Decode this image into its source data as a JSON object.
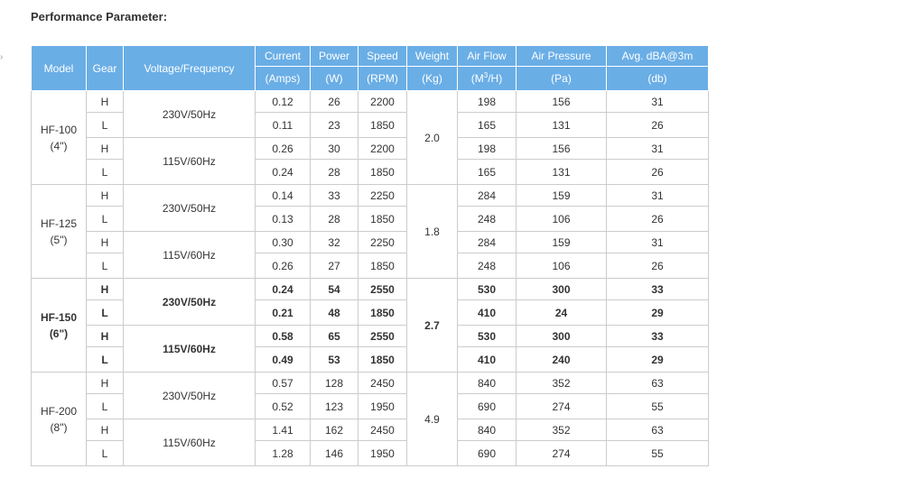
{
  "title": "Performance Parameter:",
  "header": {
    "model": "Model",
    "gear": "Gear",
    "voltage": "Voltage/Frequency",
    "current": "Current",
    "current_unit": "(Amps)",
    "power": "Power",
    "power_unit": "(W)",
    "speed": "Speed",
    "speed_unit": "(RPM)",
    "weight": "Weight",
    "weight_unit": "(Kg)",
    "airflow": "Air Flow",
    "airflow_unit_pre": "(M",
    "airflow_unit_sup": "3",
    "airflow_unit_post": "/H)",
    "pressure": "Air Pressure",
    "pressure_unit": "(Pa)",
    "noise": "Avg. dBA@3m",
    "noise_unit": "(db)"
  },
  "models": [
    {
      "name": "HF-100",
      "size": "(4\")",
      "weight": "2.0",
      "bold": false,
      "groups": [
        {
          "voltage": "230V/50Hz",
          "rows": [
            {
              "gear": "H",
              "current": "0.12",
              "power": "26",
              "speed": "2200",
              "airflow": "198",
              "pressure": "156",
              "noise": "31"
            },
            {
              "gear": "L",
              "current": "0.11",
              "power": "23",
              "speed": "1850",
              "airflow": "165",
              "pressure": "131",
              "noise": "26"
            }
          ]
        },
        {
          "voltage": "115V/60Hz",
          "rows": [
            {
              "gear": "H",
              "current": "0.26",
              "power": "30",
              "speed": "2200",
              "airflow": "198",
              "pressure": "156",
              "noise": "31"
            },
            {
              "gear": "L",
              "current": "0.24",
              "power": "28",
              "speed": "1850",
              "airflow": "165",
              "pressure": "131",
              "noise": "26"
            }
          ]
        }
      ]
    },
    {
      "name": "HF-125",
      "size": "(5\")",
      "weight": "1.8",
      "bold": false,
      "groups": [
        {
          "voltage": "230V/50Hz",
          "rows": [
            {
              "gear": "H",
              "current": "0.14",
              "power": "33",
              "speed": "2250",
              "airflow": "284",
              "pressure": "159",
              "noise": "31"
            },
            {
              "gear": "L",
              "current": "0.13",
              "power": "28",
              "speed": "1850",
              "airflow": "248",
              "pressure": "106",
              "noise": "26"
            }
          ]
        },
        {
          "voltage": "115V/60Hz",
          "rows": [
            {
              "gear": "H",
              "current": "0.30",
              "power": "32",
              "speed": "2250",
              "airflow": "284",
              "pressure": "159",
              "noise": "31"
            },
            {
              "gear": "L",
              "current": "0.26",
              "power": "27",
              "speed": "1850",
              "airflow": "248",
              "pressure": "106",
              "noise": "26"
            }
          ]
        }
      ]
    },
    {
      "name": "HF-150",
      "size": "(6\")",
      "weight": "2.7",
      "bold": true,
      "groups": [
        {
          "voltage": "230V/50Hz",
          "rows": [
            {
              "gear": "H",
              "current": "0.24",
              "power": "54",
              "speed": "2550",
              "airflow": "530",
              "pressure": "300",
              "noise": "33"
            },
            {
              "gear": "L",
              "current": "0.21",
              "power": "48",
              "speed": "1850",
              "airflow": "410",
              "pressure": "24",
              "noise": "29"
            }
          ]
        },
        {
          "voltage": "115V/60Hz",
          "rows": [
            {
              "gear": "H",
              "current": "0.58",
              "power": "65",
              "speed": "2550",
              "airflow": "530",
              "pressure": "300",
              "noise": "33"
            },
            {
              "gear": "L",
              "current": "0.49",
              "power": "53",
              "speed": "1850",
              "airflow": "410",
              "pressure": "240",
              "noise": "29"
            }
          ]
        }
      ]
    },
    {
      "name": "HF-200",
      "size": "(8\")",
      "weight": "4.9",
      "bold": false,
      "groups": [
        {
          "voltage": "230V/50Hz",
          "rows": [
            {
              "gear": "H",
              "current": "0.57",
              "power": "128",
              "speed": "2450",
              "airflow": "840",
              "pressure": "352",
              "noise": "63"
            },
            {
              "gear": "L",
              "current": "0.52",
              "power": "123",
              "speed": "1950",
              "airflow": "690",
              "pressure": "274",
              "noise": "55"
            }
          ]
        },
        {
          "voltage": "115V/60Hz",
          "rows": [
            {
              "gear": "H",
              "current": "1.41",
              "power": "162",
              "speed": "2450",
              "airflow": "840",
              "pressure": "352",
              "noise": "63"
            },
            {
              "gear": "L",
              "current": "1.28",
              "power": "146",
              "speed": "1950",
              "airflow": "690",
              "pressure": "274",
              "noise": "55"
            }
          ]
        }
      ]
    }
  ]
}
